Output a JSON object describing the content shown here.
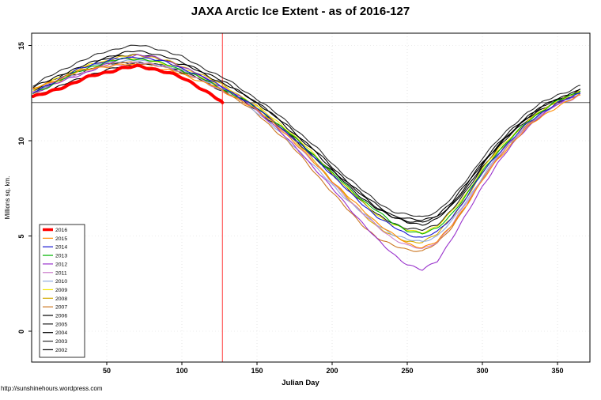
{
  "footer": {
    "url_text": "http://sunshinehours.wordpress.com"
  },
  "chart_data": {
    "type": "line",
    "title": "JAXA Arctic Ice Extent - as of 2016-127",
    "xlabel": "Julian Day",
    "ylabel": "Millions sq. km.",
    "x_ticks": [
      50,
      100,
      150,
      200,
      250,
      300,
      350
    ],
    "y_ticks": [
      0,
      5,
      10,
      15
    ],
    "xlim": [
      1,
      371
    ],
    "ylim": [
      -1.6,
      15.6
    ],
    "grid": "dotted-light",
    "legend_position": "bottom-left",
    "reference_line": {
      "axis": "y",
      "value": 12,
      "color": "#5a5a5a"
    },
    "marker_line": {
      "axis": "x",
      "value": 127,
      "color": "#ff4d4d"
    },
    "x": [
      1,
      10,
      20,
      30,
      40,
      50,
      60,
      70,
      80,
      90,
      100,
      110,
      120,
      130,
      140,
      150,
      160,
      170,
      180,
      190,
      200,
      210,
      220,
      230,
      240,
      250,
      260,
      270,
      280,
      290,
      300,
      310,
      320,
      330,
      340,
      350,
      360,
      365
    ],
    "series": [
      {
        "name": "2016",
        "color": "#ff0000",
        "width": 4,
        "end_day": 127,
        "values": [
          12.3,
          12.5,
          12.8,
          13.1,
          13.4,
          13.6,
          13.8,
          13.9,
          13.8,
          13.6,
          13.3,
          12.9,
          12.4,
          12.0
        ]
      },
      {
        "name": "2015",
        "color": "#ff8c00",
        "values": [
          12.7,
          13.0,
          13.3,
          13.6,
          13.8,
          13.9,
          14.0,
          13.95,
          13.85,
          13.7,
          13.5,
          13.2,
          12.9,
          12.5,
          12.1,
          11.6,
          11.0,
          10.3,
          9.5,
          8.7,
          7.9,
          7.1,
          6.4,
          5.7,
          5.1,
          4.6,
          4.4,
          4.7,
          5.6,
          6.7,
          7.9,
          9.0,
          9.9,
          10.7,
          11.3,
          11.8,
          12.2,
          12.4
        ]
      },
      {
        "name": "2014",
        "color": "#1414d2",
        "values": [
          12.5,
          12.9,
          13.3,
          13.7,
          14.0,
          14.2,
          14.3,
          14.4,
          14.3,
          14.1,
          13.8,
          13.5,
          13.1,
          12.7,
          12.2,
          11.7,
          11.1,
          10.4,
          9.7,
          9.0,
          8.2,
          7.4,
          6.7,
          6.0,
          5.5,
          5.1,
          4.9,
          5.2,
          6.0,
          7.1,
          8.3,
          9.3,
          10.1,
          10.9,
          11.5,
          12.0,
          12.3,
          12.5
        ]
      },
      {
        "name": "2013",
        "color": "#00b400",
        "values": [
          12.5,
          12.8,
          13.2,
          13.6,
          13.9,
          14.1,
          14.3,
          14.3,
          14.2,
          14.0,
          13.7,
          13.4,
          13.0,
          12.6,
          12.2,
          11.7,
          11.1,
          10.5,
          9.8,
          9.1,
          8.3,
          7.6,
          6.9,
          6.3,
          5.7,
          5.3,
          5.1,
          5.4,
          6.2,
          7.2,
          8.4,
          9.4,
          10.2,
          11.0,
          11.6,
          12.1,
          12.4,
          12.6
        ]
      },
      {
        "name": "2012",
        "color": "#9932cc",
        "values": [
          12.5,
          12.8,
          13.1,
          13.4,
          13.7,
          14.0,
          14.3,
          14.5,
          14.4,
          14.2,
          13.9,
          13.5,
          13.1,
          12.7,
          12.2,
          11.6,
          10.9,
          10.1,
          9.3,
          8.4,
          7.5,
          6.6,
          5.7,
          4.8,
          4.1,
          3.5,
          3.2,
          3.7,
          4.9,
          6.2,
          7.6,
          8.8,
          9.8,
          10.7,
          11.4,
          11.9,
          12.3,
          12.5
        ]
      },
      {
        "name": "2011",
        "color": "#cc80cc",
        "values": [
          12.6,
          12.9,
          13.2,
          13.5,
          13.7,
          13.9,
          14.0,
          14.1,
          14.0,
          13.9,
          13.6,
          13.3,
          12.9,
          12.5,
          12.1,
          11.6,
          11.0,
          10.3,
          9.5,
          8.7,
          7.8,
          7.0,
          6.2,
          5.5,
          4.9,
          4.5,
          4.3,
          4.7,
          5.6,
          6.8,
          8.0,
          9.1,
          10.0,
          10.8,
          11.4,
          11.9,
          12.2,
          12.4
        ]
      },
      {
        "name": "2010",
        "color": "#8faade",
        "values": [
          12.4,
          12.8,
          13.2,
          13.6,
          13.9,
          14.1,
          14.2,
          14.2,
          14.1,
          13.9,
          13.7,
          13.4,
          13.0,
          12.6,
          12.1,
          11.5,
          10.8,
          10.1,
          9.3,
          8.5,
          7.7,
          6.9,
          6.2,
          5.6,
          5.1,
          4.8,
          4.7,
          5.0,
          5.8,
          6.9,
          8.1,
          9.2,
          10.0,
          10.8,
          11.4,
          11.9,
          12.3,
          12.5
        ]
      },
      {
        "name": "2009",
        "color": "#f2e600",
        "values": [
          12.6,
          13.0,
          13.4,
          13.7,
          14.0,
          14.2,
          14.3,
          14.3,
          14.2,
          14.0,
          13.8,
          13.5,
          13.1,
          12.7,
          12.3,
          11.8,
          11.2,
          10.6,
          9.9,
          9.1,
          8.3,
          7.5,
          6.8,
          6.1,
          5.6,
          5.3,
          5.2,
          5.5,
          6.3,
          7.3,
          8.5,
          9.5,
          10.3,
          11.0,
          11.6,
          12.1,
          12.4,
          12.6
        ]
      },
      {
        "name": "2008",
        "color": "#d4aa00",
        "values": [
          12.4,
          12.8,
          13.2,
          13.6,
          14.0,
          14.2,
          14.4,
          14.5,
          14.4,
          14.2,
          13.9,
          13.6,
          13.2,
          12.8,
          12.3,
          11.8,
          11.1,
          10.4,
          9.6,
          8.8,
          7.9,
          7.0,
          6.2,
          5.5,
          5.0,
          4.7,
          4.7,
          5.1,
          6.0,
          7.1,
          8.3,
          9.4,
          10.2,
          11.0,
          11.6,
          12.1,
          12.4,
          12.6
        ]
      },
      {
        "name": "2007",
        "color": "#cc7722",
        "values": [
          12.7,
          13.0,
          13.3,
          13.6,
          13.8,
          14.0,
          14.1,
          14.1,
          14.0,
          13.8,
          13.6,
          13.3,
          12.9,
          12.5,
          12.0,
          11.4,
          10.7,
          10.0,
          9.1,
          8.2,
          7.3,
          6.4,
          5.6,
          4.9,
          4.5,
          4.3,
          4.2,
          4.6,
          5.5,
          6.7,
          8.0,
          9.1,
          10.0,
          10.8,
          11.5,
          12.0,
          12.3,
          12.5
        ]
      },
      {
        "name": "2006",
        "color": "#000000",
        "values": [
          12.3,
          12.6,
          12.9,
          13.2,
          13.5,
          13.7,
          13.9,
          14.0,
          14.0,
          13.9,
          13.7,
          13.4,
          13.0,
          12.6,
          12.2,
          11.7,
          11.1,
          10.5,
          9.8,
          9.1,
          8.4,
          7.7,
          7.0,
          6.4,
          6.0,
          5.8,
          5.7,
          6.0,
          6.7,
          7.7,
          8.8,
          9.7,
          10.5,
          11.2,
          11.7,
          12.1,
          12.4,
          12.6
        ]
      },
      {
        "name": "2005",
        "color": "#1a1a1a",
        "values": [
          12.6,
          12.9,
          13.2,
          13.5,
          13.8,
          14.0,
          14.1,
          14.1,
          14.0,
          13.9,
          13.6,
          13.3,
          12.9,
          12.5,
          12.1,
          11.6,
          11.0,
          10.4,
          9.7,
          9.0,
          8.2,
          7.5,
          6.8,
          6.1,
          5.7,
          5.4,
          5.3,
          5.6,
          6.4,
          7.4,
          8.6,
          9.6,
          10.4,
          11.1,
          11.6,
          12.0,
          12.3,
          12.5
        ]
      },
      {
        "name": "2004",
        "color": "#000000",
        "values": [
          12.7,
          13.0,
          13.4,
          13.7,
          14.0,
          14.3,
          14.5,
          14.5,
          14.4,
          14.2,
          14.0,
          13.7,
          13.3,
          12.9,
          12.5,
          12.0,
          11.4,
          10.8,
          10.1,
          9.4,
          8.6,
          7.9,
          7.2,
          6.6,
          6.1,
          5.9,
          5.8,
          6.1,
          6.8,
          7.8,
          8.9,
          9.8,
          10.6,
          11.3,
          11.8,
          12.2,
          12.5,
          12.7
        ]
      },
      {
        "name": "2003",
        "color": "#2b2b2b",
        "values": [
          12.9,
          13.3,
          13.7,
          14.1,
          14.4,
          14.7,
          14.9,
          15.0,
          14.9,
          14.7,
          14.4,
          14.0,
          13.6,
          13.2,
          12.7,
          12.2,
          11.6,
          11.0,
          10.3,
          9.6,
          8.8,
          8.1,
          7.4,
          6.8,
          6.3,
          6.1,
          6.0,
          6.3,
          7.0,
          8.0,
          9.1,
          10.0,
          10.8,
          11.5,
          12.0,
          12.4,
          12.7,
          12.9
        ]
      },
      {
        "name": "2002",
        "color": "#000000",
        "values": [
          12.8,
          13.1,
          13.5,
          13.8,
          14.1,
          14.4,
          14.6,
          14.7,
          14.6,
          14.4,
          14.1,
          13.8,
          13.4,
          13.0,
          12.5,
          12.0,
          11.4,
          10.7,
          10.0,
          9.3,
          8.5,
          7.8,
          7.1,
          6.5,
          6.0,
          5.7,
          5.6,
          5.9,
          6.6,
          7.6,
          8.7,
          9.7,
          10.5,
          11.2,
          11.8,
          12.2,
          12.5,
          12.7
        ]
      }
    ]
  }
}
